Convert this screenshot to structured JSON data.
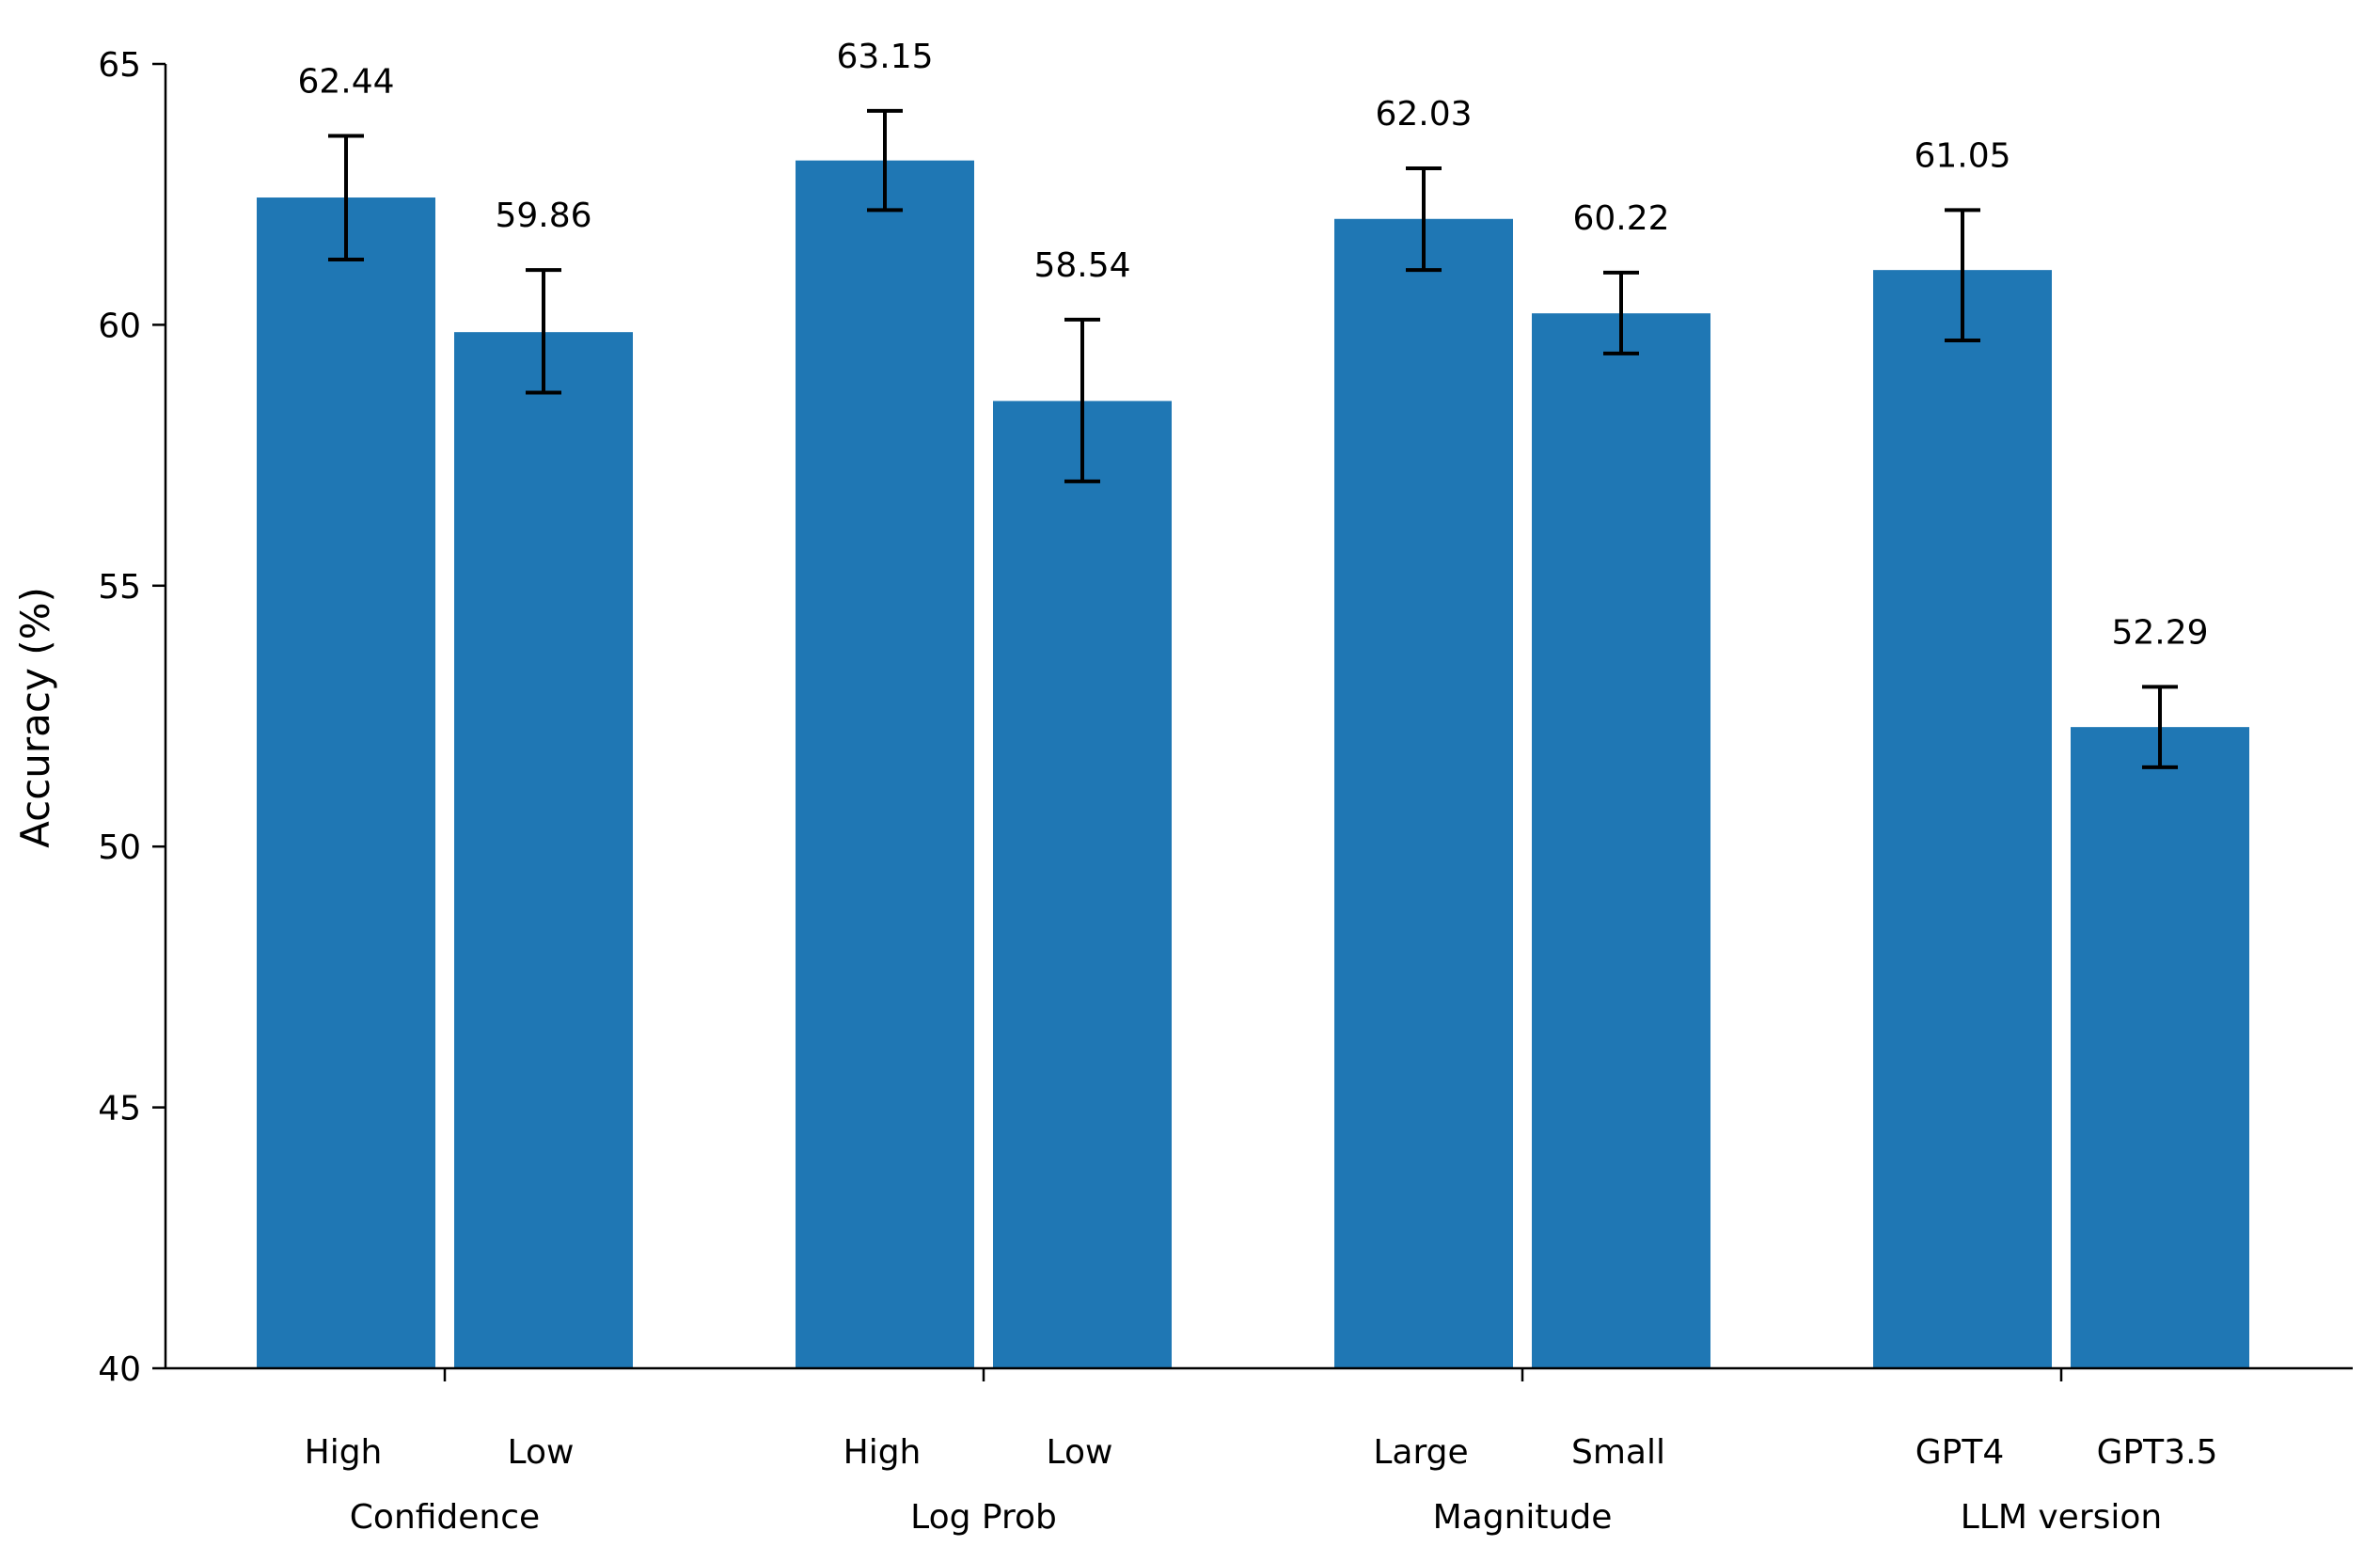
{
  "chart_data": {
    "type": "bar",
    "ylabel": "Accuracy (%)",
    "ylim": [
      40,
      65
    ],
    "yticks": [
      40,
      45,
      50,
      55,
      60,
      65
    ],
    "bar_color": "#1f77b4",
    "groups": [
      {
        "label": "Confidence",
        "bars": [
          {
            "label": "High",
            "value": 62.44,
            "value_label": "62.44",
            "err_low": 61.25,
            "err_high": 63.62
          },
          {
            "label": "Low",
            "value": 59.86,
            "value_label": "59.86",
            "err_low": 58.7,
            "err_high": 61.05
          }
        ]
      },
      {
        "label": "Log Prob",
        "bars": [
          {
            "label": "High",
            "value": 63.15,
            "value_label": "63.15",
            "err_low": 62.2,
            "err_high": 64.1
          },
          {
            "label": "Low",
            "value": 58.54,
            "value_label": "58.54",
            "err_low": 57.0,
            "err_high": 60.1
          }
        ]
      },
      {
        "label": "Magnitude",
        "bars": [
          {
            "label": "Large",
            "value": 62.03,
            "value_label": "62.03",
            "err_low": 61.05,
            "err_high": 63.0
          },
          {
            "label": "Small",
            "value": 60.22,
            "value_label": "60.22",
            "err_low": 59.45,
            "err_high": 61.0
          }
        ]
      },
      {
        "label": "LLM version",
        "bars": [
          {
            "label": "GPT4",
            "value": 61.05,
            "value_label": "61.05",
            "err_low": 59.7,
            "err_high": 62.2
          },
          {
            "label": "GPT3.5",
            "value": 52.29,
            "value_label": "52.29",
            "err_low": 51.52,
            "err_high": 53.06
          }
        ]
      }
    ]
  }
}
